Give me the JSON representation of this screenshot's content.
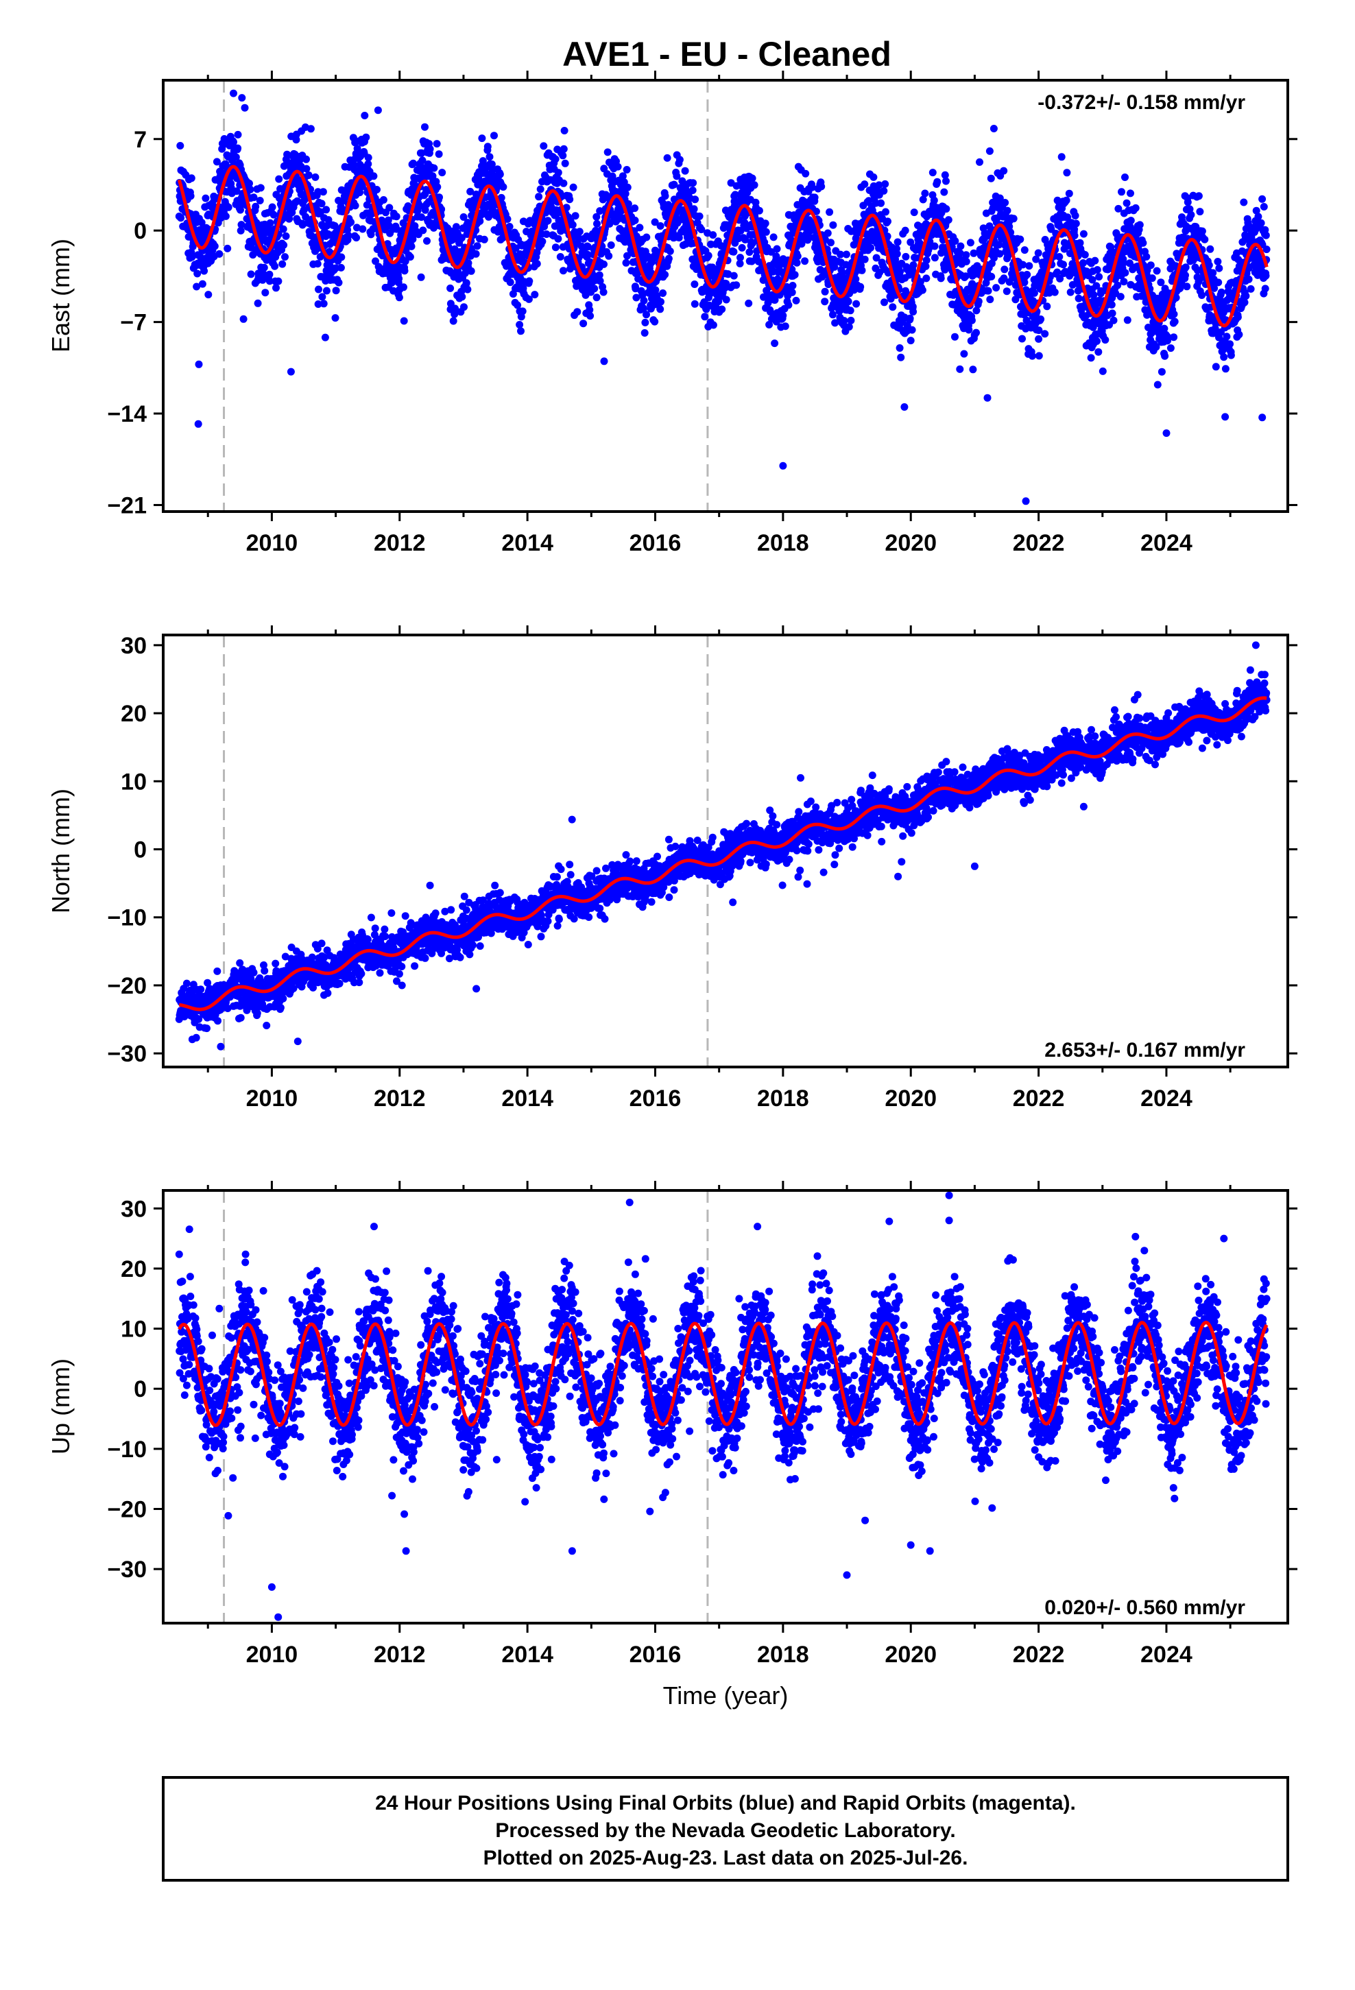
{
  "title": "AVE1  - EU - Cleaned",
  "xlabel": "Time (year)",
  "colors": {
    "points": "#0000ff",
    "fit": "#ff0000",
    "event_lines": "#b8b8b8",
    "frame": "#000000"
  },
  "footer": {
    "lines": [
      "24 Hour Positions Using Final Orbits (blue) and Rapid Orbits (magenta).",
      "Processed by the Nevada Geodetic Laboratory.",
      "Plotted on 2025-Aug-23. Last data on 2025-Jul-26."
    ]
  },
  "chart_data": [
    {
      "type": "scatter",
      "ylabel": "East (mm)",
      "rate_label": "-0.372+/- 0.158 mm/yr",
      "xlim": [
        2008.3,
        2025.9
      ],
      "ylim": [
        -21.5,
        11.5
      ],
      "xticks": [
        2010,
        2012,
        2014,
        2016,
        2018,
        2020,
        2022,
        2024
      ],
      "yticks": [
        7,
        0,
        -7,
        -14,
        -21
      ],
      "event_lines_x": [
        2009.25,
        2016.82
      ],
      "series": [
        {
          "kind": "daily_positions",
          "x_range": [
            2008.55,
            2025.57
          ],
          "model": {
            "type": "linear_plus_annual",
            "ref_year": 2008.55,
            "intercept": 2.0,
            "slope": -0.372,
            "annual_amplitude": 3.2,
            "annual_amplitude_trend": 0.0,
            "phase_peak_year_fraction": 0.4
          },
          "scatter_sd": 1.7,
          "outliers": [
            [
              2008.85,
              -14.8
            ],
            [
              2010.3,
              -10.8
            ],
            [
              2015.2,
              -10.0
            ],
            [
              2018.0,
              -18.0
            ],
            [
              2019.9,
              -13.5
            ],
            [
              2021.2,
              -12.8
            ],
            [
              2021.8,
              -20.7
            ],
            [
              2024.0,
              -15.5
            ],
            [
              2025.5,
              -14.3
            ],
            [
              2009.4,
              10.5
            ],
            [
              2021.3,
              7.8
            ]
          ]
        },
        {
          "kind": "fit_curve",
          "x_range": [
            2008.55,
            2025.57
          ],
          "model": {
            "type": "linear_plus_annual",
            "ref_year": 2008.55,
            "intercept": 2.0,
            "slope": -0.372,
            "annual_amplitude": 3.2,
            "annual_amplitude_trend": 0.0,
            "phase_peak_year_fraction": 0.4
          }
        }
      ]
    },
    {
      "type": "scatter",
      "ylabel": "North (mm)",
      "rate_label": "2.653+/- 0.167 mm/yr",
      "xlim": [
        2008.3,
        2025.9
      ],
      "ylim": [
        -32.0,
        31.5
      ],
      "xticks": [
        2010,
        2012,
        2014,
        2016,
        2018,
        2020,
        2022,
        2024
      ],
      "yticks": [
        30,
        20,
        10,
        0,
        -10,
        -20,
        -30
      ],
      "event_lines_x": [
        2009.25,
        2016.82
      ],
      "series": [
        {
          "kind": "daily_positions",
          "x_range": [
            2008.55,
            2025.57
          ],
          "model": {
            "type": "linear_plus_annual",
            "ref_year": 2008.55,
            "intercept": -23.6,
            "slope": 2.653,
            "annual_amplitude": 0.9,
            "annual_amplitude_trend": 0.0,
            "phase_peak_year_fraction": 0.45
          },
          "scatter_sd": 1.4,
          "outliers": [
            [
              2009.2,
              -29.0
            ],
            [
              2012.4,
              -16.0
            ],
            [
              2013.2,
              -20.5
            ],
            [
              2019.8,
              -4.0
            ],
            [
              2021.0,
              -2.5
            ],
            [
              2023.5,
              22.0
            ],
            [
              2025.4,
              30.0
            ]
          ]
        },
        {
          "kind": "fit_curve",
          "x_range": [
            2008.55,
            2025.57
          ],
          "model": {
            "type": "linear_plus_annual",
            "ref_year": 2008.55,
            "intercept": -23.6,
            "slope": 2.653,
            "annual_amplitude": 0.9,
            "annual_amplitude_trend": 0.0,
            "phase_peak_year_fraction": 0.45
          }
        }
      ]
    },
    {
      "type": "scatter",
      "ylabel": "Up (mm)",
      "rate_label": "0.020+/- 0.560 mm/yr",
      "xlim": [
        2008.3,
        2025.9
      ],
      "ylim": [
        -39.0,
        33.0
      ],
      "xticks": [
        2010,
        2012,
        2014,
        2016,
        2018,
        2020,
        2022,
        2024
      ],
      "yticks": [
        30,
        20,
        10,
        0,
        -10,
        -20,
        -30
      ],
      "event_lines_x": [
        2009.25,
        2016.82
      ],
      "series": [
        {
          "kind": "daily_positions",
          "x_range": [
            2008.55,
            2025.57
          ],
          "model": {
            "type": "linear_plus_annual",
            "ref_year": 2008.55,
            "intercept": 2.3,
            "slope": 0.02,
            "annual_amplitude": 8.4,
            "annual_amplitude_trend": 0.0,
            "phase_peak_year_fraction": 0.62
          },
          "scatter_sd": 4.2,
          "outliers": [
            [
              2010.1,
              -38.0
            ],
            [
              2010.0,
              -33.0
            ],
            [
              2012.1,
              -27.0
            ],
            [
              2014.7,
              -27.0
            ],
            [
              2015.6,
              31.0
            ],
            [
              2019.0,
              -31.0
            ],
            [
              2020.0,
              -26.0
            ],
            [
              2020.3,
              -27.0
            ],
            [
              2020.6,
              28.0
            ],
            [
              2017.6,
              27.0
            ],
            [
              2011.6,
              27.0
            ],
            [
              2024.9,
              25.0
            ]
          ]
        },
        {
          "kind": "fit_curve",
          "x_range": [
            2008.55,
            2025.57
          ],
          "model": {
            "type": "linear_plus_annual",
            "ref_year": 2008.55,
            "intercept": 2.3,
            "slope": 0.02,
            "annual_amplitude": 8.4,
            "annual_amplitude_trend": 0.0,
            "phase_peak_year_fraction": 0.62
          }
        }
      ]
    }
  ]
}
